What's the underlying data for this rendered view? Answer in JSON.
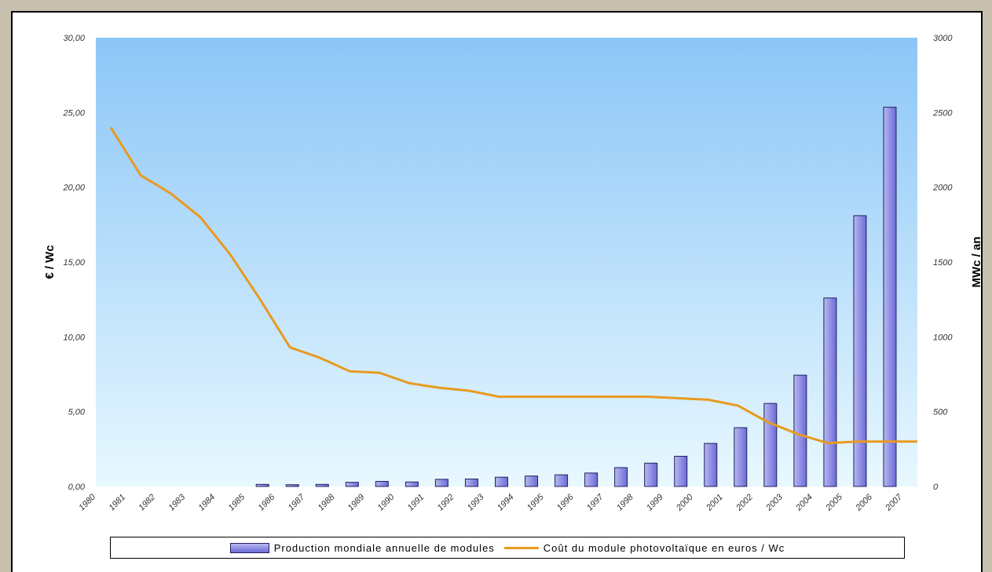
{
  "chart_data": {
    "type": "bar",
    "categories": [
      "1980",
      "1981",
      "1982",
      "1983",
      "1984",
      "1985",
      "1986",
      "1987",
      "1988",
      "1989",
      "1990",
      "1991",
      "1992",
      "1993",
      "1994",
      "1995",
      "1996",
      "1997",
      "1998",
      "1999",
      "2000",
      "2001",
      "2002",
      "2003",
      "2004",
      "2005",
      "2006",
      "2007"
    ],
    "series": [
      {
        "name": "Production mondiale annuelle de modules",
        "type": "bar",
        "axis": "right",
        "values": [
          0,
          0,
          0,
          0,
          0,
          14,
          12,
          14,
          28,
          34,
          30,
          48,
          50,
          62,
          70,
          78,
          90,
          126,
          156,
          202,
          288,
          393,
          555,
          744,
          1260,
          1810,
          2535,
          null
        ]
      },
      {
        "name": "Coût du module photovoltaïque en euros / Wc",
        "type": "line",
        "axis": "left",
        "values": [
          24.0,
          20.8,
          19.6,
          18.0,
          15.5,
          12.5,
          9.3,
          8.6,
          7.7,
          7.6,
          6.9,
          6.6,
          6.4,
          6.0,
          6.0,
          6.0,
          6.0,
          6.0,
          6.0,
          5.9,
          5.8,
          5.4,
          4.3,
          3.5,
          2.9,
          3.0,
          3.0,
          3.0
        ]
      }
    ],
    "y_left": {
      "label": "€ / Wc",
      "ylim": [
        0,
        30
      ],
      "ticks": [
        "0,00",
        "5,00",
        "10,00",
        "15,00",
        "20,00",
        "25,00",
        "30,00"
      ]
    },
    "y_right": {
      "label": "MWc / an",
      "ylim": [
        0,
        3000
      ],
      "ticks": [
        "0",
        "500",
        "1000",
        "1500",
        "2000",
        "2500",
        "3000"
      ]
    },
    "grid": false,
    "legend_position": "bottom",
    "colors": {
      "bar_light": "#b8b8f0",
      "bar_dark": "#6c6ad8",
      "bar_edge": "#202060",
      "line": "#e89a20",
      "plot_top": "#8cc6f7",
      "plot_bottom": "#e8f8ff"
    }
  }
}
